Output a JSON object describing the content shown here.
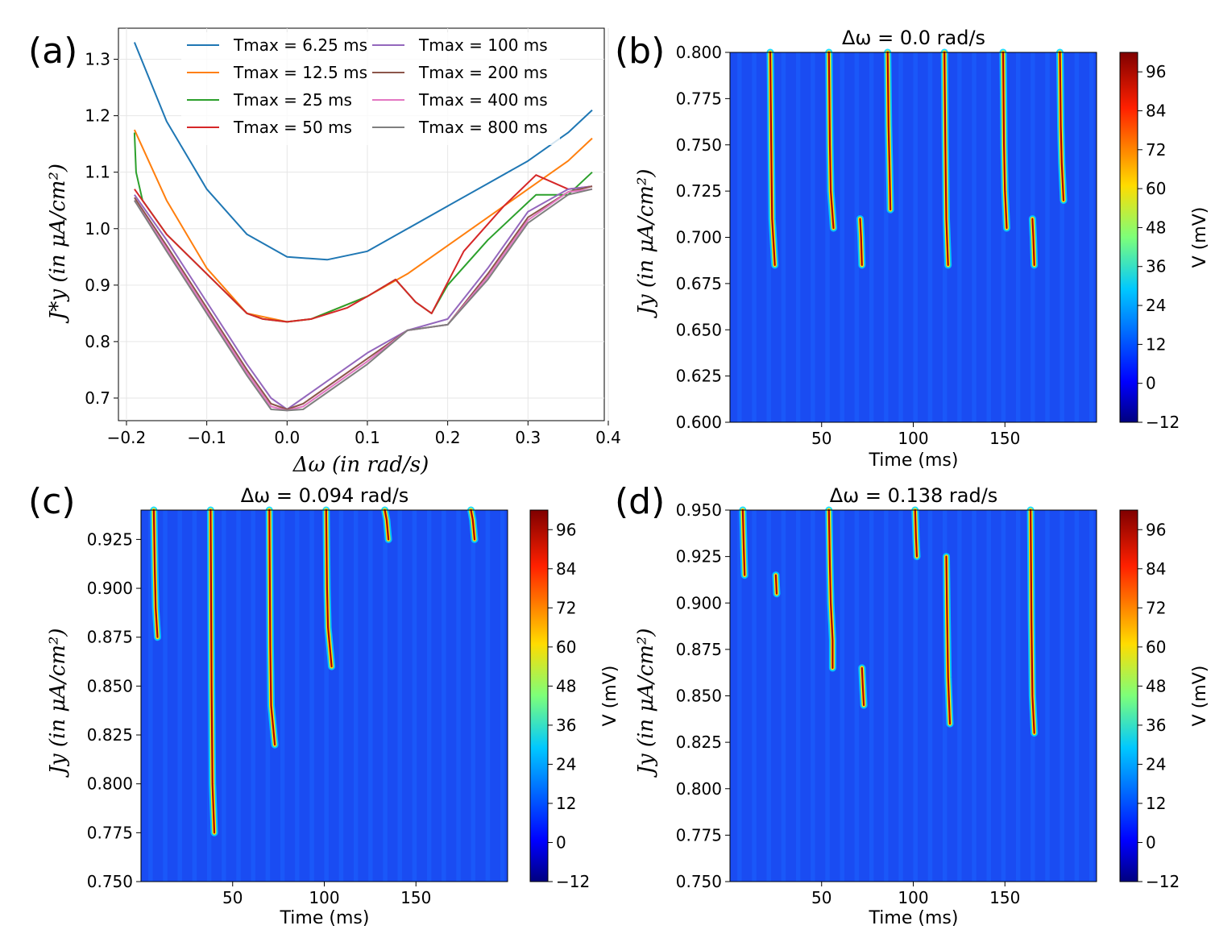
{
  "panels": {
    "a": {
      "letter": "(a)",
      "xlabel": "Δω (in rad/s)",
      "ylabel": "J*y (in μA/cm²)",
      "xticks": [
        "−0.2",
        "−0.1",
        "0.0",
        "0.1",
        "0.2",
        "0.3",
        "0.4"
      ],
      "yticks": [
        "0.7",
        "0.8",
        "0.9",
        "1.0",
        "1.1",
        "1.2",
        "1.3"
      ],
      "legend": [
        "Tmax = 6.25 ms",
        "Tmax = 12.5 ms",
        "Tmax = 25 ms",
        "Tmax = 50 ms",
        "Tmax = 100 ms",
        "Tmax = 200 ms",
        "Tmax = 400 ms",
        "Tmax = 800 ms"
      ]
    },
    "b": {
      "letter": "(b)",
      "title": "Δω = 0.0 rad/s",
      "xlabel": "Time (ms)",
      "ylabel": "Jy (in μA/cm²)",
      "xticks": [
        "50",
        "100",
        "150"
      ],
      "yticks": [
        "0.600",
        "0.625",
        "0.650",
        "0.675",
        "0.700",
        "0.725",
        "0.750",
        "0.775",
        "0.800"
      ],
      "cbar_label": "V (mV)",
      "cbar_ticks": [
        "−12",
        "0",
        "12",
        "24",
        "36",
        "48",
        "60",
        "72",
        "84",
        "96"
      ]
    },
    "c": {
      "letter": "(c)",
      "title": "Δω = 0.094 rad/s",
      "xlabel": "Time (ms)",
      "ylabel": "Jy (in μA/cm²)",
      "xticks": [
        "50",
        "100",
        "150"
      ],
      "yticks": [
        "0.750",
        "0.775",
        "0.800",
        "0.825",
        "0.850",
        "0.875",
        "0.900",
        "0.925"
      ],
      "cbar_label": "V (mV)",
      "cbar_ticks": [
        "−12",
        "0",
        "12",
        "24",
        "36",
        "48",
        "60",
        "72",
        "84",
        "96"
      ]
    },
    "d": {
      "letter": "(d)",
      "title": "Δω = 0.138 rad/s",
      "xlabel": "Time (ms)",
      "ylabel": "Jy (in μA/cm²)",
      "xticks": [
        "50",
        "100",
        "150"
      ],
      "yticks": [
        "0.750",
        "0.775",
        "0.800",
        "0.825",
        "0.850",
        "0.875",
        "0.900",
        "0.925",
        "0.950"
      ],
      "cbar_label": "V (mV)",
      "cbar_ticks": [
        "−12",
        "0",
        "12",
        "24",
        "36",
        "48",
        "60",
        "72",
        "84",
        "96"
      ]
    }
  },
  "chart_data": [
    {
      "type": "line",
      "xlim": [
        -0.21,
        0.395
      ],
      "ylim": [
        0.66,
        1.355
      ],
      "grid": true,
      "legend_position": "top",
      "series": [
        {
          "name": "Tmax = 6.25 ms",
          "color": "#1f77b4",
          "x": [
            -0.19,
            -0.15,
            -0.1,
            -0.05,
            0.0,
            0.05,
            0.1,
            0.15,
            0.2,
            0.25,
            0.3,
            0.35,
            0.38
          ],
          "y": [
            1.33,
            1.19,
            1.07,
            0.99,
            0.95,
            0.945,
            0.96,
            1.0,
            1.04,
            1.08,
            1.12,
            1.17,
            1.21
          ]
        },
        {
          "name": "Tmax = 12.5 ms",
          "color": "#ff7f0e",
          "x": [
            -0.19,
            -0.15,
            -0.1,
            -0.05,
            0.0,
            0.03,
            0.1,
            0.15,
            0.2,
            0.25,
            0.3,
            0.35,
            0.38
          ],
          "y": [
            1.175,
            1.05,
            0.93,
            0.85,
            0.835,
            0.84,
            0.88,
            0.92,
            0.97,
            1.02,
            1.07,
            1.12,
            1.16
          ]
        },
        {
          "name": "Tmax = 25 ms",
          "color": "#2ca02c",
          "x": [
            -0.19,
            -0.188,
            -0.18,
            -0.15,
            -0.1,
            -0.05,
            -0.03,
            0.0,
            0.03,
            0.1,
            0.135,
            0.16,
            0.18,
            0.2,
            0.25,
            0.28,
            0.31,
            0.35,
            0.38
          ],
          "y": [
            1.17,
            1.1,
            1.05,
            0.99,
            0.92,
            0.85,
            0.84,
            0.835,
            0.84,
            0.88,
            0.91,
            0.87,
            0.85,
            0.9,
            0.98,
            1.02,
            1.06,
            1.06,
            1.1
          ]
        },
        {
          "name": "Tmax = 50 ms",
          "color": "#d62728",
          "x": [
            -0.19,
            -0.15,
            -0.1,
            -0.05,
            -0.03,
            0.0,
            0.03,
            0.075,
            0.1,
            0.135,
            0.16,
            0.18,
            0.22,
            0.27,
            0.31,
            0.35,
            0.38
          ],
          "y": [
            1.07,
            0.99,
            0.92,
            0.85,
            0.84,
            0.835,
            0.84,
            0.86,
            0.88,
            0.91,
            0.87,
            0.85,
            0.96,
            1.04,
            1.095,
            1.07,
            1.075
          ]
        },
        {
          "name": "Tmax = 100 ms",
          "color": "#9467bd",
          "x": [
            -0.19,
            -0.15,
            -0.1,
            -0.05,
            -0.02,
            0.0,
            0.02,
            0.05,
            0.1,
            0.15,
            0.2,
            0.25,
            0.3,
            0.35,
            0.38
          ],
          "y": [
            1.06,
            0.98,
            0.87,
            0.76,
            0.7,
            0.68,
            0.7,
            0.73,
            0.78,
            0.82,
            0.84,
            0.93,
            1.03,
            1.07,
            1.075
          ]
        },
        {
          "name": "Tmax = 200 ms",
          "color": "#8c564b",
          "x": [
            -0.19,
            -0.15,
            -0.1,
            -0.05,
            -0.02,
            0.0,
            0.02,
            0.05,
            0.1,
            0.15,
            0.2,
            0.25,
            0.3,
            0.35,
            0.38
          ],
          "y": [
            1.055,
            0.97,
            0.86,
            0.75,
            0.69,
            0.68,
            0.69,
            0.72,
            0.77,
            0.82,
            0.83,
            0.92,
            1.02,
            1.065,
            1.075
          ]
        },
        {
          "name": "Tmax = 400 ms",
          "color": "#e377c2",
          "x": [
            -0.19,
            -0.15,
            -0.1,
            -0.05,
            -0.02,
            0.0,
            0.02,
            0.05,
            0.1,
            0.15,
            0.2,
            0.25,
            0.3,
            0.35,
            0.38
          ],
          "y": [
            1.05,
            0.965,
            0.855,
            0.745,
            0.685,
            0.678,
            0.685,
            0.715,
            0.765,
            0.82,
            0.83,
            0.915,
            1.015,
            1.065,
            1.07
          ]
        },
        {
          "name": "Tmax = 800 ms",
          "color": "#7f7f7f",
          "x": [
            -0.19,
            -0.15,
            -0.1,
            -0.05,
            -0.02,
            0.0,
            0.02,
            0.05,
            0.1,
            0.15,
            0.2,
            0.25,
            0.3,
            0.35,
            0.38
          ],
          "y": [
            1.05,
            0.96,
            0.85,
            0.74,
            0.68,
            0.678,
            0.68,
            0.71,
            0.76,
            0.82,
            0.83,
            0.91,
            1.01,
            1.06,
            1.07
          ]
        }
      ]
    },
    {
      "type": "heatmap",
      "xlim": [
        0,
        200
      ],
      "ylim": [
        0.6,
        0.8
      ],
      "zlim": [
        -12,
        102
      ],
      "colormap": "jet",
      "spike_traces": [
        {
          "t": [
            22,
            22.5,
            23,
            24.5
          ],
          "j": [
            0.8,
            0.75,
            0.71,
            0.685
          ]
        },
        {
          "t": [
            54,
            54.5,
            55,
            56.5
          ],
          "j": [
            0.8,
            0.75,
            0.725,
            0.705
          ]
        },
        {
          "t": [
            86,
            86.5,
            87,
            87.5
          ],
          "j": [
            0.8,
            0.76,
            0.74,
            0.715
          ]
        },
        {
          "t": [
            117,
            117.5,
            118,
            119
          ],
          "j": [
            0.8,
            0.75,
            0.71,
            0.685
          ]
        },
        {
          "t": [
            149,
            149.5,
            150,
            151
          ],
          "j": [
            0.8,
            0.75,
            0.725,
            0.705
          ]
        },
        {
          "t": [
            180,
            180.5,
            181,
            182
          ],
          "j": [
            0.8,
            0.76,
            0.74,
            0.72
          ]
        },
        {
          "t": [
            71,
            71.5,
            72
          ],
          "j": [
            0.71,
            0.7,
            0.685
          ]
        },
        {
          "t": [
            165,
            165.5,
            166
          ],
          "j": [
            0.71,
            0.7,
            0.685
          ]
        }
      ]
    },
    {
      "type": "heatmap",
      "xlim": [
        0,
        200
      ],
      "ylim": [
        0.75,
        0.94
      ],
      "zlim": [
        -12,
        102
      ],
      "colormap": "jet",
      "spike_traces": [
        {
          "t": [
            7,
            7.5,
            8,
            9
          ],
          "j": [
            0.94,
            0.91,
            0.89,
            0.875
          ]
        },
        {
          "t": [
            38,
            38.5,
            39,
            40
          ],
          "j": [
            0.94,
            0.85,
            0.8,
            0.775
          ]
        },
        {
          "t": [
            70,
            70.5,
            71,
            73
          ],
          "j": [
            0.94,
            0.87,
            0.84,
            0.82
          ]
        },
        {
          "t": [
            101,
            101.5,
            102,
            104
          ],
          "j": [
            0.94,
            0.9,
            0.88,
            0.86
          ]
        },
        {
          "t": [
            133,
            134,
            135
          ],
          "j": [
            0.94,
            0.935,
            0.925
          ]
        },
        {
          "t": [
            180,
            181,
            182
          ],
          "j": [
            0.94,
            0.935,
            0.925
          ]
        }
      ]
    },
    {
      "type": "heatmap",
      "xlim": [
        0,
        200
      ],
      "ylim": [
        0.75,
        0.95
      ],
      "zlim": [
        -12,
        102
      ],
      "colormap": "jet",
      "spike_traces": [
        {
          "t": [
            7,
            7.5,
            8
          ],
          "j": [
            0.95,
            0.93,
            0.915
          ]
        },
        {
          "t": [
            54,
            54.5,
            55,
            56,
            56
          ],
          "j": [
            0.95,
            0.92,
            0.9,
            0.88,
            0.865
          ]
        },
        {
          "t": [
            101,
            101.5,
            102
          ],
          "j": [
            0.95,
            0.935,
            0.925
          ]
        },
        {
          "t": [
            118,
            118.5,
            119,
            120
          ],
          "j": [
            0.925,
            0.89,
            0.86,
            0.835
          ]
        },
        {
          "t": [
            164,
            164.5,
            165,
            166
          ],
          "j": [
            0.95,
            0.89,
            0.85,
            0.83
          ]
        },
        {
          "t": [
            25,
            25.5
          ],
          "j": [
            0.915,
            0.905
          ]
        },
        {
          "t": [
            72,
            72.5,
            73
          ],
          "j": [
            0.865,
            0.855,
            0.845
          ]
        }
      ]
    }
  ]
}
